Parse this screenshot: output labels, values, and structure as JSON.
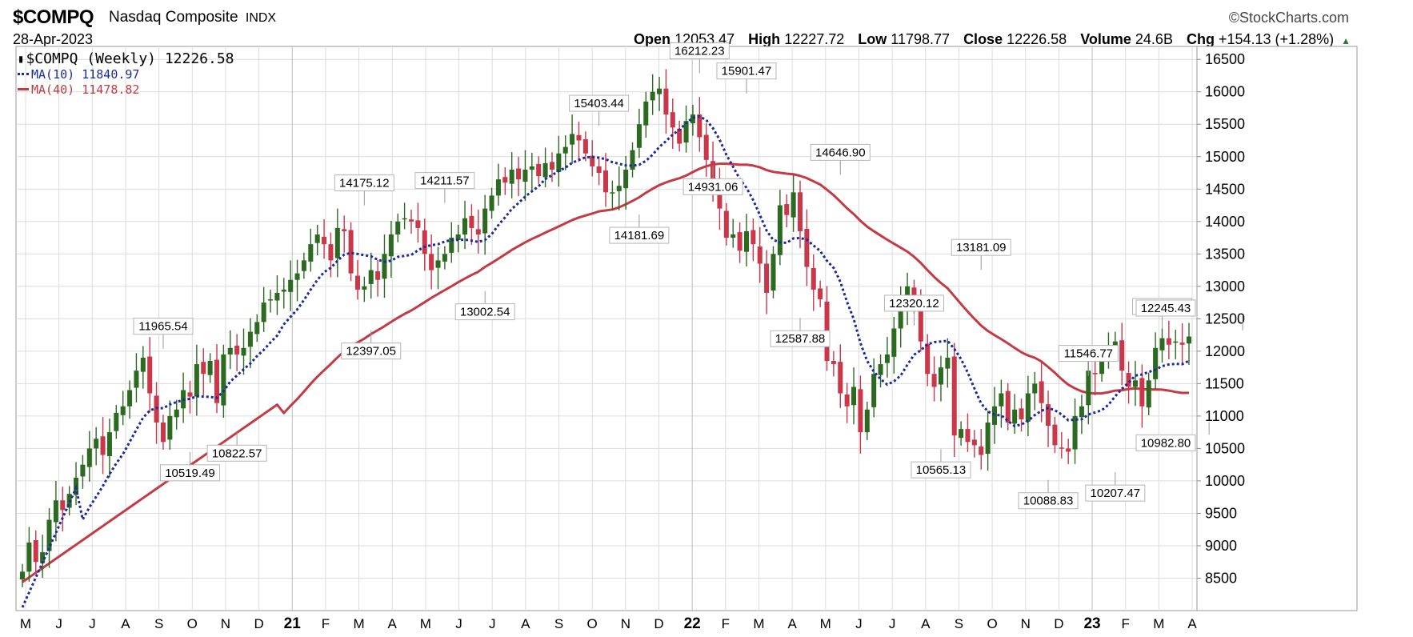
{
  "header": {
    "symbol": "$COMPQ",
    "name": "Nasdaq Composite",
    "exchange": "INDX",
    "date": "28-Apr-2023",
    "credit": "©StockCharts.com",
    "open_label": "Open",
    "open": "12053.47",
    "high_label": "High",
    "high": "12227.72",
    "low_label": "Low",
    "low": "11798.77",
    "close_label": "Close",
    "close": "12226.58",
    "volume_label": "Volume",
    "volume": "24.6B",
    "chg_label": "Chg",
    "chg": "+154.13 (+1.28%)"
  },
  "legend": {
    "main": "$COMPQ (Weekly) 12226.58",
    "ma10": "MA(10) 11840.97",
    "ma40": "MA(40) 11478.82"
  },
  "colors": {
    "up": "#2d6a21",
    "down": "#c8374a",
    "ma10": "#1c2a9c",
    "ma40": "#c23b45",
    "grid": "#dcdcdc"
  },
  "chart_data": {
    "type": "candlestick",
    "interval": "weekly",
    "ylim": [
      8000,
      16700
    ],
    "yticks": [
      8500,
      9000,
      9500,
      10000,
      10500,
      11000,
      11500,
      12000,
      12500,
      13000,
      13500,
      14000,
      14500,
      15000,
      15500,
      16000,
      16500
    ],
    "xticks": [
      "M",
      "J",
      "J",
      "A",
      "S",
      "O",
      "N",
      "D",
      "21",
      "F",
      "M",
      "A",
      "M",
      "J",
      "J",
      "A",
      "S",
      "O",
      "N",
      "D",
      "22",
      "F",
      "M",
      "A",
      "M",
      "J",
      "J",
      "A",
      "S",
      "O",
      "N",
      "D",
      "23",
      "F",
      "M",
      "A"
    ],
    "year_ticks": [
      "21",
      "22",
      "23"
    ],
    "annotations": [
      {
        "text": "11965.54",
        "type": "high",
        "value": 11965.54
      },
      {
        "text": "10519.49",
        "type": "low",
        "value": 10519.49
      },
      {
        "text": "10822.57",
        "type": "low",
        "value": 10822.57
      },
      {
        "text": "14175.12",
        "type": "high",
        "value": 14175.12
      },
      {
        "text": "12397.05",
        "type": "low",
        "value": 12397.05
      },
      {
        "text": "14211.57",
        "type": "high",
        "value": 14211.57
      },
      {
        "text": "13002.54",
        "type": "low",
        "value": 13002.54
      },
      {
        "text": "15403.44",
        "type": "high",
        "value": 15403.44
      },
      {
        "text": "14181.69",
        "type": "low",
        "value": 14181.69
      },
      {
        "text": "16212.23",
        "type": "high",
        "value": 16212.23
      },
      {
        "text": "14931.06",
        "type": "low",
        "value": 14931.06
      },
      {
        "text": "15901.47",
        "type": "high",
        "value": 15901.47
      },
      {
        "text": "12587.88",
        "type": "low",
        "value": 12587.88
      },
      {
        "text": "14646.90",
        "type": "high",
        "value": 14646.9
      },
      {
        "text": "12320.12",
        "type": "high",
        "value": 12320.12
      },
      {
        "text": "10565.13",
        "type": "low",
        "value": 10565.13
      },
      {
        "text": "13181.09",
        "type": "high",
        "value": 13181.09
      },
      {
        "text": "10088.83",
        "type": "low",
        "value": 10088.83
      },
      {
        "text": "11546.77",
        "type": "high",
        "value": 11546.77
      },
      {
        "text": "10207.47",
        "type": "low",
        "value": 10207.47
      },
      {
        "text": "12269.55",
        "type": "high",
        "value": 12269.55
      },
      {
        "text": "10982.80",
        "type": "low",
        "value": 10982.8
      },
      {
        "text": "12245.43",
        "type": "high",
        "value": 12245.43
      }
    ],
    "annotation_weeks": [
      21,
      25,
      32,
      51,
      52,
      63,
      69,
      86,
      92,
      101,
      103,
      108,
      116,
      122,
      133,
      137,
      143,
      153,
      159,
      163,
      170,
      177,
      182
    ],
    "close": [
      8600,
      9050,
      8750,
      8900,
      9400,
      9700,
      9550,
      9800,
      10050,
      10250,
      10500,
      10650,
      10400,
      10750,
      11050,
      11150,
      11400,
      11700,
      11900,
      11350,
      10900,
      10600,
      11000,
      11100,
      11400,
      11300,
      11800,
      11650,
      11850,
      11200,
      11950,
      12050,
      11950,
      12050,
      12300,
      12450,
      12750,
      12800,
      12900,
      12950,
      13100,
      13200,
      13400,
      13650,
      13800,
      13650,
      13400,
      13900,
      13850,
      13200,
      12950,
      13000,
      13250,
      13100,
      13500,
      13800,
      14000,
      14050,
      14000,
      13900,
      13500,
      13250,
      13400,
      13500,
      13750,
      13800,
      14050,
      13900,
      13800,
      14200,
      14400,
      14650,
      14600,
      14800,
      14650,
      14800,
      14850,
      14700,
      14900,
      14800,
      15050,
      15150,
      15350,
      15250,
      15050,
      14850,
      14750,
      14450,
      14450,
      14550,
      14800,
      15100,
      15500,
      15850,
      16000,
      16050,
      15650,
      15450,
      15200,
      15550,
      15650,
      15300,
      14950,
      14600,
      14200,
      13750,
      13800,
      13550,
      13850,
      13650,
      13350,
      12900,
      13500,
      14250,
      14100,
      14450,
      13850,
      13300,
      12950,
      12800,
      11850,
      11800,
      11350,
      11150,
      11450,
      10750,
      11100,
      11650,
      11800,
      11950,
      12350,
      12700,
      13000,
      12700,
      12150,
      11650,
      11450,
      11750,
      11900,
      10700,
      10800,
      10600,
      10550,
      10400,
      10900,
      11150,
      11350,
      10900,
      11100,
      10950,
      11350,
      11500,
      11200,
      10850,
      10550,
      10500,
      10450,
      11000,
      11150,
      11700,
      11650,
      11850,
      12050,
      12150,
      11700,
      11450,
      11550,
      11150,
      11550,
      12050,
      12200,
      12100,
      12150,
      12100,
      12226.58
    ]
  }
}
